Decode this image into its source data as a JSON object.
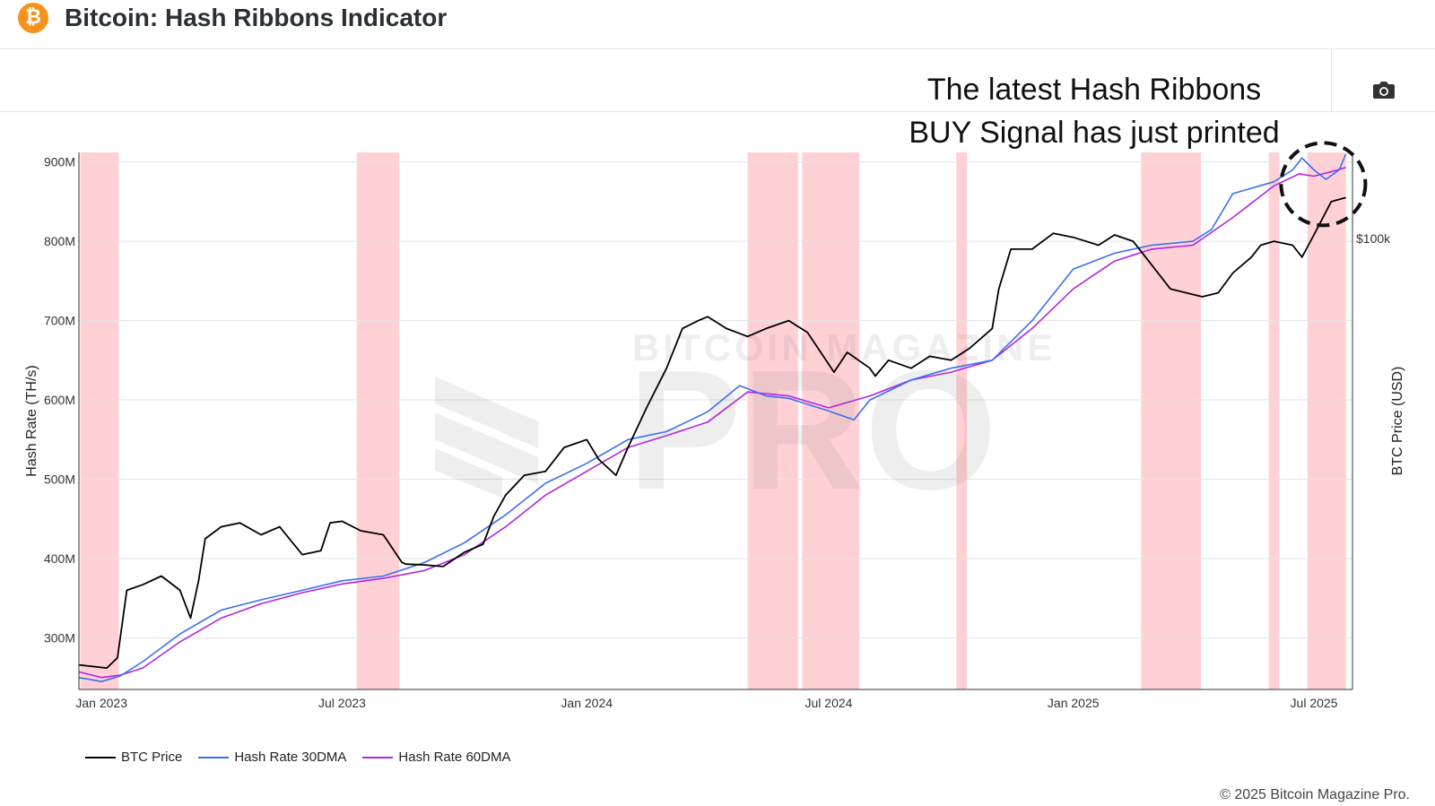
{
  "header": {
    "title": "Bitcoin: Hash Ribbons Indicator",
    "logo_icon": "bitcoin-logo"
  },
  "toolbar": {
    "camera_icon": "camera-icon"
  },
  "annotation": {
    "line1": "The latest Hash Ribbons",
    "line2": "BUY Signal has just printed"
  },
  "copyright": "© 2025 Bitcoin Magazine Pro.",
  "chart_data": {
    "type": "line",
    "title": "Bitcoin: Hash Ribbons Indicator",
    "ylabel": "Hash Rate (TH/s)",
    "y2label": "BTC Price (USD)",
    "ylim": [
      235,
      912
    ],
    "yticks": [
      300,
      400,
      500,
      600,
      700,
      800,
      900
    ],
    "ytick_labels": [
      "300M",
      "400M",
      "500M",
      "600M",
      "700M",
      "800M",
      "900M"
    ],
    "y2_annotation": "$100k",
    "xlim": [
      "2022-12-15",
      "2025-07-30"
    ],
    "xticks": [
      "2023-01-01",
      "2023-07-01",
      "2024-01-01",
      "2024-07-01",
      "2025-01-01",
      "2025-07-01"
    ],
    "xtick_labels": [
      "Jan 2023",
      "Jul 2023",
      "Jan 2024",
      "Jul 2024",
      "Jan 2025",
      "Jul 2025"
    ],
    "grid": true,
    "legend_position": "bottom-left",
    "capitulation_bands": [
      [
        "2022-12-16",
        "2023-01-14"
      ],
      [
        "2023-07-12",
        "2023-08-13"
      ],
      [
        "2024-05-01",
        "2024-06-08"
      ],
      [
        "2024-06-11",
        "2024-07-24"
      ],
      [
        "2024-10-05",
        "2024-10-13"
      ],
      [
        "2025-02-21",
        "2025-04-07"
      ],
      [
        "2025-05-28",
        "2025-06-05"
      ],
      [
        "2025-06-26",
        "2025-07-25"
      ]
    ],
    "series": [
      {
        "name": "BTC Price",
        "color": "#000000",
        "axis": "price",
        "y_scale_note": "plotted on secondary axis; values below given in primary-axis-equivalent units",
        "x": [
          "2022-12-15",
          "2023-01-05",
          "2023-01-13",
          "2023-01-20",
          "2023-02-01",
          "2023-02-15",
          "2023-03-01",
          "2023-03-09",
          "2023-03-15",
          "2023-03-20",
          "2023-04-01",
          "2023-04-15",
          "2023-05-01",
          "2023-05-15",
          "2023-06-01",
          "2023-06-15",
          "2023-06-22",
          "2023-07-01",
          "2023-07-15",
          "2023-08-01",
          "2023-08-15",
          "2023-08-18",
          "2023-09-01",
          "2023-09-15",
          "2023-10-01",
          "2023-10-15",
          "2023-10-23",
          "2023-11-01",
          "2023-11-15",
          "2023-12-01",
          "2023-12-15",
          "2024-01-01",
          "2024-01-10",
          "2024-01-23",
          "2024-02-01",
          "2024-02-15",
          "2024-03-01",
          "2024-03-13",
          "2024-03-25",
          "2024-04-01",
          "2024-04-15",
          "2024-05-01",
          "2024-05-15",
          "2024-06-01",
          "2024-06-15",
          "2024-07-05",
          "2024-07-15",
          "2024-08-01",
          "2024-08-05",
          "2024-08-15",
          "2024-09-01",
          "2024-09-15",
          "2024-10-01",
          "2024-10-15",
          "2024-11-01",
          "2024-11-06",
          "2024-11-15",
          "2024-12-01",
          "2024-12-17",
          "2025-01-01",
          "2025-01-20",
          "2025-02-01",
          "2025-02-15",
          "2025-03-01",
          "2025-03-15",
          "2025-04-08",
          "2025-04-20",
          "2025-05-01",
          "2025-05-15",
          "2025-05-22",
          "2025-06-01",
          "2025-06-15",
          "2025-06-22",
          "2025-07-01",
          "2025-07-14",
          "2025-07-25"
        ],
        "values": [
          266,
          262,
          275,
          360,
          367,
          378,
          360,
          325,
          372,
          425,
          440,
          445,
          430,
          440,
          405,
          410,
          445,
          447,
          435,
          430,
          395,
          393,
          392,
          390,
          408,
          418,
          453,
          480,
          505,
          510,
          540,
          550,
          525,
          505,
          540,
          590,
          640,
          690,
          700,
          705,
          690,
          680,
          690,
          700,
          685,
          635,
          660,
          640,
          630,
          650,
          640,
          655,
          650,
          665,
          690,
          740,
          790,
          790,
          810,
          805,
          795,
          808,
          800,
          770,
          740,
          730,
          735,
          760,
          780,
          795,
          800,
          795,
          780,
          808,
          850,
          855
        ]
      },
      {
        "name": "Hash Rate 30DMA",
        "color": "#3b6ff2",
        "axis": "hashrate",
        "x": [
          "2022-12-15",
          "2023-01-01",
          "2023-01-15",
          "2023-02-01",
          "2023-03-01",
          "2023-04-01",
          "2023-05-01",
          "2023-06-01",
          "2023-07-01",
          "2023-08-01",
          "2023-09-01",
          "2023-10-01",
          "2023-11-01",
          "2023-12-01",
          "2024-01-01",
          "2024-02-01",
          "2024-03-01",
          "2024-04-01",
          "2024-04-25",
          "2024-05-15",
          "2024-06-01",
          "2024-07-01",
          "2024-07-20",
          "2024-08-01",
          "2024-09-01",
          "2024-10-01",
          "2024-11-01",
          "2024-12-01",
          "2025-01-01",
          "2025-02-01",
          "2025-03-01",
          "2025-04-01",
          "2025-04-15",
          "2025-05-01",
          "2025-06-01",
          "2025-06-15",
          "2025-06-22",
          "2025-07-01",
          "2025-07-10",
          "2025-07-20",
          "2025-07-25"
        ],
        "values": [
          250,
          245,
          252,
          270,
          305,
          335,
          348,
          360,
          372,
          378,
          395,
          420,
          455,
          495,
          520,
          550,
          560,
          585,
          618,
          605,
          602,
          586,
          575,
          600,
          625,
          640,
          650,
          700,
          765,
          785,
          795,
          800,
          815,
          860,
          875,
          890,
          905,
          890,
          878,
          890,
          910
        ]
      },
      {
        "name": "Hash Rate 60DMA",
        "color": "#b026e5",
        "axis": "hashrate",
        "x": [
          "2022-12-15",
          "2023-01-01",
          "2023-01-15",
          "2023-02-01",
          "2023-03-01",
          "2023-04-01",
          "2023-05-01",
          "2023-06-01",
          "2023-07-01",
          "2023-08-01",
          "2023-09-01",
          "2023-10-01",
          "2023-11-01",
          "2023-12-01",
          "2024-01-01",
          "2024-02-01",
          "2024-03-01",
          "2024-04-01",
          "2024-05-01",
          "2024-06-01",
          "2024-07-01",
          "2024-08-01",
          "2024-09-01",
          "2024-10-01",
          "2024-11-01",
          "2024-12-01",
          "2025-01-01",
          "2025-02-01",
          "2025-03-01",
          "2025-04-01",
          "2025-05-01",
          "2025-06-01",
          "2025-06-20",
          "2025-07-01",
          "2025-07-15",
          "2025-07-25"
        ],
        "values": [
          257,
          250,
          253,
          262,
          295,
          325,
          343,
          357,
          368,
          375,
          385,
          405,
          440,
          480,
          510,
          540,
          555,
          572,
          610,
          605,
          590,
          605,
          625,
          635,
          650,
          690,
          740,
          775,
          790,
          795,
          830,
          870,
          885,
          882,
          888,
          893
        ]
      }
    ]
  }
}
